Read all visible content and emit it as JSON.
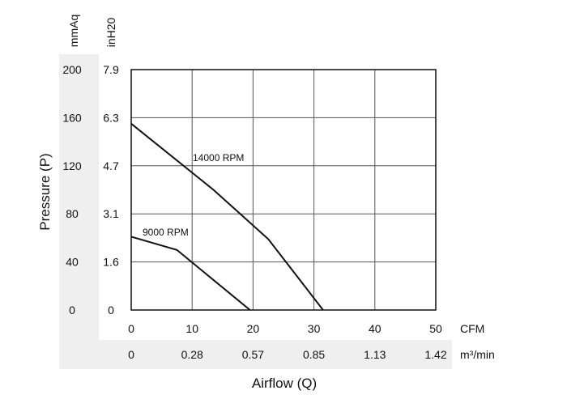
{
  "chart_data": {
    "type": "line",
    "x_ticks_cfm": [
      "0",
      "10",
      "20",
      "30",
      "40",
      "50"
    ],
    "x_ticks_m3min": [
      "0",
      "0.28",
      "0.57",
      "0.85",
      "1.13",
      "1.42"
    ],
    "x_unit_cfm": "CFM",
    "x_unit_m3min": "m³/min",
    "xlabel": "Airflow (Q)",
    "y_ticks_mmaq": [
      "0",
      "40",
      "80",
      "120",
      "160",
      "200"
    ],
    "y_ticks_inh2o": [
      "0",
      "1.6",
      "3.1",
      "4.7",
      "6.3",
      "7.9"
    ],
    "y_unit_mmaq": "mmAq",
    "y_unit_inh2o": "inH20",
    "ylabel": "Pressure (P)",
    "xlim": [
      0,
      50
    ],
    "ylim": [
      0,
      200
    ],
    "grid": true,
    "series": [
      {
        "name": "14000 RPM",
        "x": [
          0,
          13.5,
          22.5,
          31.5
        ],
        "y": [
          155,
          100,
          59,
          0
        ]
      },
      {
        "name": "9000 RPM",
        "x": [
          0,
          7.5,
          19.5
        ],
        "y": [
          61,
          50,
          0
        ]
      }
    ],
    "colors": {
      "line": "#111111",
      "band": "#efefef",
      "grid": "#555555"
    }
  }
}
